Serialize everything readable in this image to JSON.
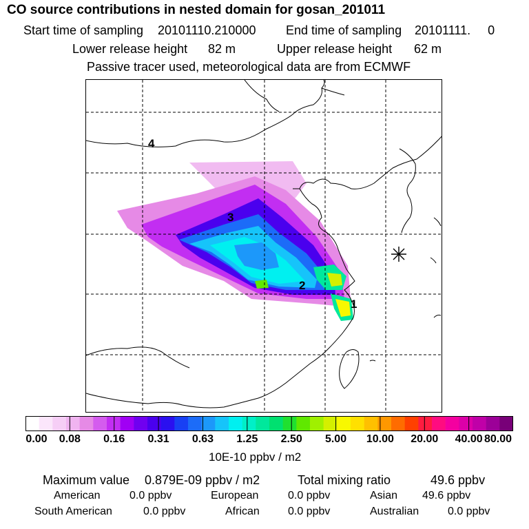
{
  "header": {
    "title": "CO  source contributions in nested domain for gosan_201011",
    "start_label": "Start time of sampling",
    "start_value": "20101110.210000",
    "end_label": "End time of sampling",
    "end_value": "20101111.     0",
    "lower_label": "Lower release height",
    "lower_value": "82 m",
    "upper_label": "Upper release height",
    "upper_value": "62 m",
    "note": "Passive tracer used, meteorological data are from ECMWF"
  },
  "map": {
    "region_labels": [
      "1",
      "2",
      "3",
      "4"
    ],
    "receptor_symbol": "asterisk-marker"
  },
  "colorbar": {
    "ticks": [
      "0.00",
      "0.08",
      "0.16",
      "0.31",
      "0.63",
      "1.25",
      "2.50",
      "5.00",
      "10.00",
      "20.00",
      "40.00",
      "80.00"
    ],
    "units": "10E-10 ppbv / m2",
    "colors": [
      "#ffffff",
      "#fbe6fb",
      "#f6cef6",
      "#f0b4f0",
      "#e68ae6",
      "#d45cee",
      "#c22ef2",
      "#a000f4",
      "#7000f0",
      "#4a00ee",
      "#2a10f0",
      "#1840f4",
      "#1c6cf8",
      "#1c98fa",
      "#16c4fa",
      "#00f0f0",
      "#00f0c8",
      "#00e89c",
      "#00e070",
      "#20e030",
      "#60e800",
      "#a0f000",
      "#d4f000",
      "#f8f800",
      "#ffe000",
      "#ffc000",
      "#ff9800",
      "#ff6c00",
      "#ff4000",
      "#ff1c40",
      "#ff0c80",
      "#f400a0",
      "#dc00a8",
      "#c000a8",
      "#9c0098",
      "#780078"
    ]
  },
  "summary": {
    "max_label": "Maximum value",
    "max_value": "0.879E-09 ppbv / m2",
    "total_label": "Total mixing ratio",
    "total_value": "49.6 ppbv",
    "sources": [
      {
        "name": "American",
        "value": "0.0 ppbv"
      },
      {
        "name": "European",
        "value": "0.0 ppbv"
      },
      {
        "name": "Asian",
        "value": "49.6 ppbv"
      },
      {
        "name": "South American",
        "value": "0.0 ppbv"
      },
      {
        "name": "African",
        "value": "0.0 ppbv"
      },
      {
        "name": "Australian",
        "value": "0.0 ppbv"
      }
    ]
  }
}
